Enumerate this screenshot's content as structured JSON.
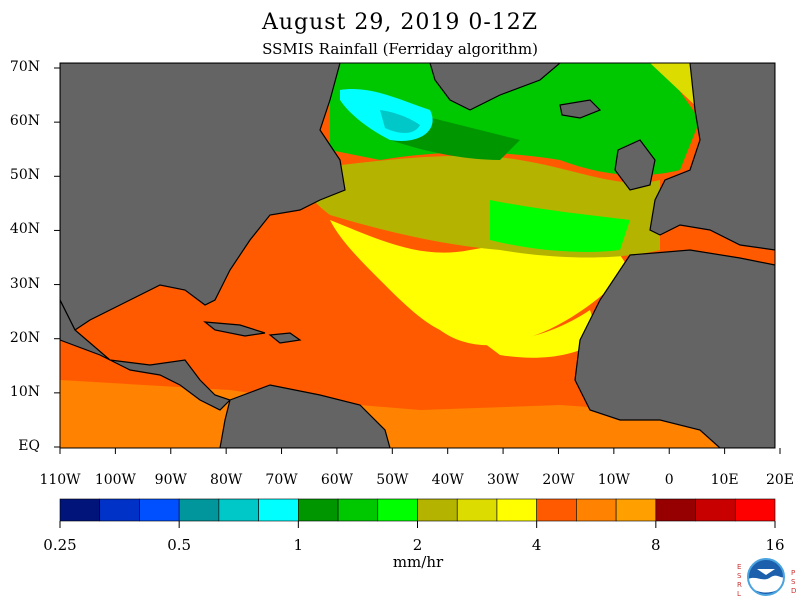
{
  "title": "August 29, 2019 0-12Z",
  "subtitle": "SSMIS Rainfall (Ferriday algorithm)",
  "map": {
    "lat_labels": [
      "70N",
      "60N",
      "50N",
      "40N",
      "30N",
      "20N",
      "10N",
      "EQ"
    ],
    "lon_labels": [
      "110W",
      "100W",
      "90W",
      "80W",
      "70W",
      "60W",
      "50W",
      "40W",
      "30W",
      "20W",
      "10W",
      "0",
      "10E",
      "20E"
    ],
    "land_color": "#646464",
    "coastline_color": "#000000"
  },
  "colorbar": {
    "colors": [
      "#00147a",
      "#0032c8",
      "#0050ff",
      "#00969b",
      "#00c8c8",
      "#00ffff",
      "#009600",
      "#00c800",
      "#00ff00",
      "#b4b400",
      "#dcdc00",
      "#ffff00",
      "#ff5a00",
      "#ff8200",
      "#ffa000",
      "#960000",
      "#c80000",
      "#ff0000"
    ],
    "tick_labels": [
      "0.25",
      "0.5",
      "1",
      "2",
      "4",
      "8",
      "16"
    ],
    "units": "mm/hr"
  },
  "logo": {
    "icon": "noaa-logo-icon",
    "left_letters": "ESRL",
    "right_letters": "PSD"
  }
}
